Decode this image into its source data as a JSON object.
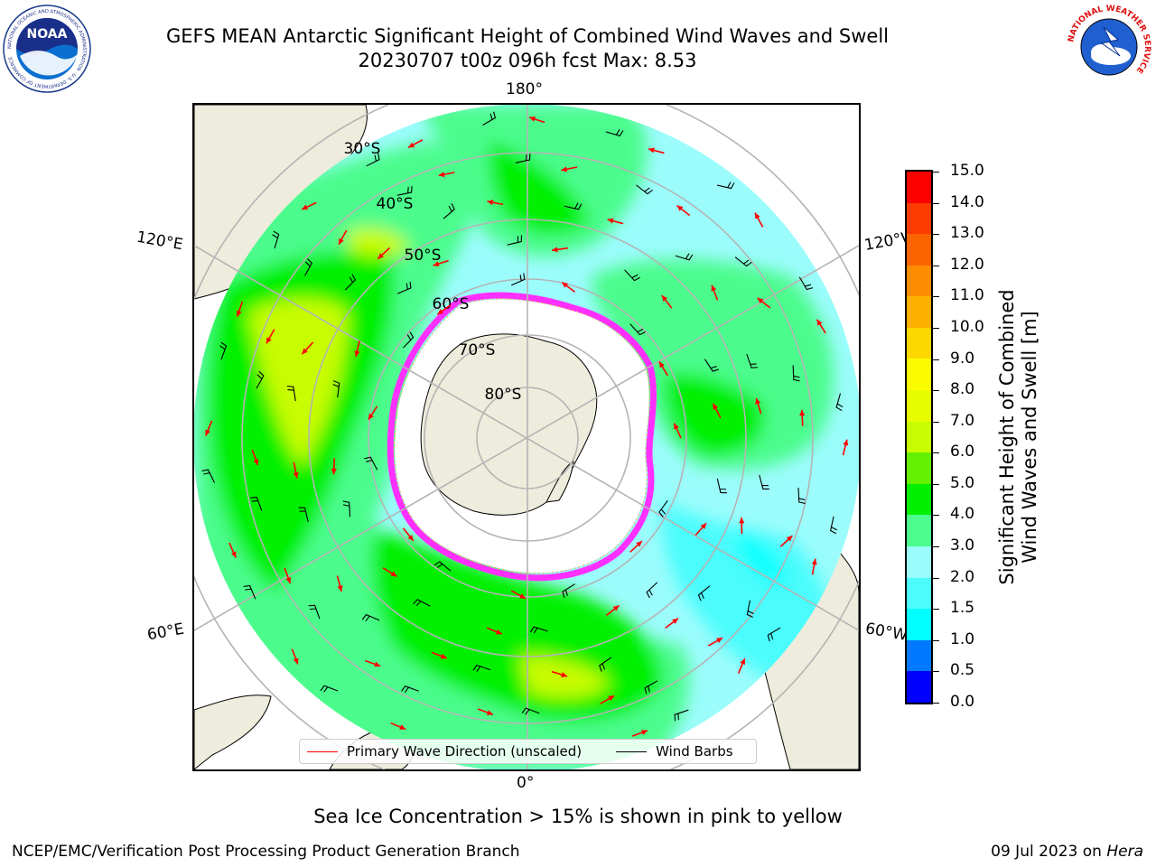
{
  "title": {
    "line1": "GEFS MEAN Antarctic Significant Height of Combined Wind Waves and Swell",
    "line2": "20230707 t00z 096h fcst   Max: 8.53"
  },
  "logos": {
    "left": {
      "name": "noaa-logo",
      "text": "NOAA",
      "ring_text": "NATIONAL OCEANIC AND ATMOSPHERIC ADMINISTRATION · U.S. DEPARTMENT OF COMMERCE"
    },
    "right": {
      "name": "nws-logo",
      "ring_text": "NATIONAL WEATHER SERVICE"
    }
  },
  "map": {
    "projection": "south polar stereographic",
    "longitude_labels": {
      "top": "180°",
      "bottom": "0°",
      "upper_left": "120°E",
      "upper_right": "120°W",
      "lower_left": "60°E",
      "lower_right": "60°W"
    },
    "latitude_labels": [
      "30°S",
      "40°S",
      "50°S",
      "60°S",
      "70°S",
      "80°S"
    ],
    "colors": {
      "land": "#eeecdc",
      "ocean_low": "#9cfcfc",
      "ocean_mid": "#4cfc8c",
      "ocean_high": "#00f000",
      "ocean_peak": "#c8fc00",
      "ice": "#ffffff",
      "ice_edge": "#ff30ff",
      "grid": "#b4b4b4",
      "arrow": "#ff0000",
      "barb": "#000000"
    }
  },
  "legend": {
    "items": [
      {
        "label": "Primary Wave Direction (unscaled)",
        "color": "#ff0000"
      },
      {
        "label": "Wind Barbs",
        "color": "#000000"
      }
    ]
  },
  "colorbar": {
    "title_line1": "Significant Height of Combined",
    "title_line2": "Wind Waves and Swell [m]",
    "tick_labels": [
      "0.0",
      "0.5",
      "1.0",
      "1.5",
      "2.0",
      "3.0",
      "4.0",
      "5.0",
      "6.0",
      "7.0",
      "8.0",
      "9.0",
      "10.0",
      "11.0",
      "12.0",
      "13.0",
      "14.0",
      "15.0"
    ],
    "colors": [
      "#0000ff",
      "#0078ff",
      "#00ffff",
      "#4cfcfc",
      "#9cfcfc",
      "#4cfc8c",
      "#00f000",
      "#64f000",
      "#c8fc00",
      "#e8fc00",
      "#fcfc00",
      "#fcd800",
      "#fcb000",
      "#fc8c00",
      "#fc6400",
      "#fc3c00",
      "#fc0000"
    ]
  },
  "note": "Sea Ice Concentration > 15% is shown in pink to yellow",
  "footer": {
    "left": "NCEP/EMC/Verification Post Processing Product Generation Branch",
    "right_date": "09 Jul 2023 on ",
    "right_machine": "Hera"
  }
}
